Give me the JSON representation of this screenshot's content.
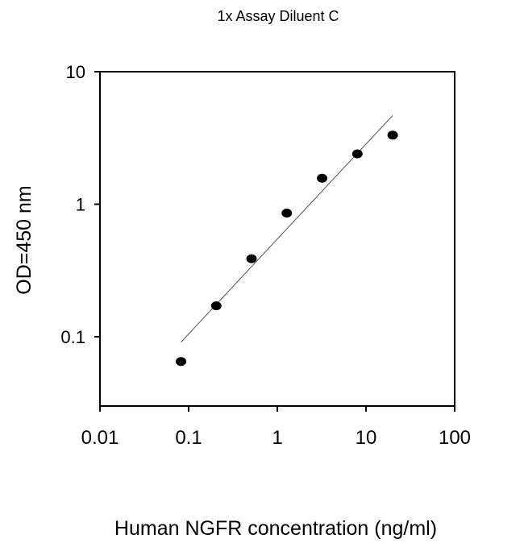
{
  "chart_data": {
    "type": "scatter",
    "title": "1x Assay Diluent C",
    "xlabel": "Human NGFR concentration (ng/ml)",
    "ylabel": "OD=450 nm",
    "x_scale": "log",
    "y_scale": "log",
    "xlim": [
      0.01,
      100
    ],
    "ylim": [
      0.03,
      10
    ],
    "x_ticks": [
      "0.01",
      "0.1",
      "1",
      "10",
      "100"
    ],
    "x_tick_values": [
      0.01,
      0.1,
      1,
      10,
      100
    ],
    "y_ticks": [
      "0.1",
      "1",
      "10"
    ],
    "y_tick_values": [
      0.1,
      1,
      10
    ],
    "grid": false,
    "points": {
      "x": [
        0.082,
        0.205,
        0.512,
        1.28,
        3.2,
        8,
        20
      ],
      "y": [
        0.065,
        0.171,
        0.388,
        0.857,
        1.57,
        2.4,
        3.32
      ]
    },
    "fit_line": {
      "x": [
        0.082,
        20
      ],
      "y": [
        0.091,
        4.67
      ]
    },
    "colors": {
      "points": "#000000",
      "fit_line": "#555555",
      "axes": "#000000"
    }
  }
}
